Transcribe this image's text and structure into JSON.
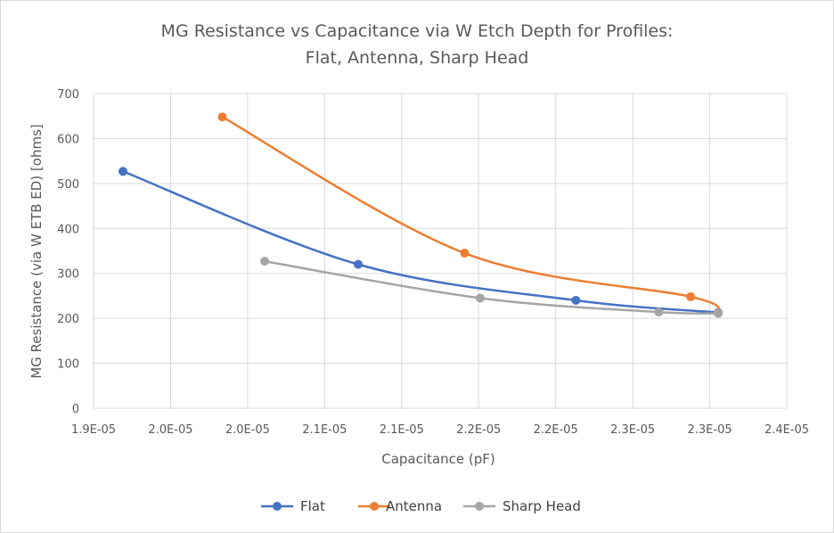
{
  "chart_data": {
    "type": "scatter",
    "title_lines": [
      "MG Resistance vs Capacitance via W Etch Depth for Profiles:",
      "Flat, Antenna, Sharp Head"
    ],
    "xlabel": "Capacitance (pF)",
    "ylabel": "MG Resistance (via W ETB ED) [ohms]",
    "xlim": [
      1.95e-05,
      2.4e-05
    ],
    "ylim": [
      0,
      700
    ],
    "x_ticks": [
      1.95e-05,
      2e-05,
      2.05e-05,
      2.1e-05,
      2.15e-05,
      2.2e-05,
      2.25e-05,
      2.3e-05,
      2.35e-05,
      2.4e-05
    ],
    "x_tick_labels": [
      "1.9E-05",
      "2.0E-05",
      "2.0E-05",
      "2.1E-05",
      "2.1E-05",
      "2.2E-05",
      "2.2E-05",
      "2.3E-05",
      "2.3E-05",
      "2.4E-05"
    ],
    "y_ticks": [
      0,
      100,
      200,
      300,
      400,
      500,
      600,
      700
    ],
    "y_tick_labels": [
      "0",
      "100",
      "200",
      "300",
      "400",
      "500",
      "600",
      "700"
    ],
    "grid": true,
    "smooth_lines": true,
    "legend_position": "bottom",
    "series": [
      {
        "name": "Flat",
        "color": "#4472c4",
        "points": [
          {
            "x": 1.9691e-05,
            "y": 527
          },
          {
            "x": 2.1218e-05,
            "y": 320
          },
          {
            "x": 2.2631e-05,
            "y": 240
          },
          {
            "x": 2.3555e-05,
            "y": 213
          }
        ]
      },
      {
        "name": "Antenna",
        "color": "#ed7d31",
        "points": [
          {
            "x": 2.0336e-05,
            "y": 648
          },
          {
            "x": 2.1909e-05,
            "y": 345
          },
          {
            "x": 2.3376e-05,
            "y": 248
          },
          {
            "x": 2.3555e-05,
            "y": 212
          }
        ]
      },
      {
        "name": "Sharp Head",
        "color": "#a5a5a5",
        "points": [
          {
            "x": 2.0611e-05,
            "y": 327
          },
          {
            "x": 2.201e-05,
            "y": 245
          },
          {
            "x": 2.3169e-05,
            "y": 214
          },
          {
            "x": 2.3555e-05,
            "y": 211
          }
        ]
      }
    ]
  }
}
